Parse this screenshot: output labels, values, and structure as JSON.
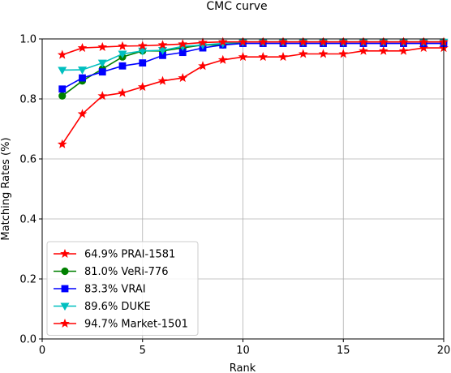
{
  "chart_data": {
    "type": "line",
    "title": "CMC curve",
    "xlabel": "Rank",
    "ylabel": "Matching Rates (%)",
    "xlim": [
      0,
      20
    ],
    "ylim": [
      0.0,
      1.0
    ],
    "xticks": [
      "0",
      "5",
      "10",
      "15",
      "20"
    ],
    "yticks": [
      "0.0",
      "0.2",
      "0.4",
      "0.6",
      "0.8",
      "1.0"
    ],
    "grid": true,
    "legend_position": "lower-left",
    "x": [
      1,
      2,
      3,
      4,
      5,
      6,
      7,
      8,
      9,
      10,
      11,
      12,
      13,
      14,
      15,
      16,
      17,
      18,
      19,
      20
    ],
    "series": [
      {
        "name": "64.9% PRAI-1581",
        "color": "#ff0000",
        "marker": "star",
        "values": [
          0.649,
          0.75,
          0.81,
          0.82,
          0.84,
          0.86,
          0.87,
          0.91,
          0.93,
          0.94,
          0.94,
          0.94,
          0.95,
          0.95,
          0.95,
          0.96,
          0.96,
          0.96,
          0.97,
          0.97
        ]
      },
      {
        "name": "81.0% VeRi-776",
        "color": "#008000",
        "marker": "circle",
        "values": [
          0.81,
          0.86,
          0.9,
          0.94,
          0.96,
          0.96,
          0.97,
          0.98,
          0.98,
          0.99,
          0.99,
          0.99,
          0.99,
          0.99,
          0.99,
          0.99,
          0.99,
          0.99,
          0.99,
          0.99
        ]
      },
      {
        "name": "83.3% VRAI",
        "color": "#0000ff",
        "marker": "square",
        "values": [
          0.833,
          0.87,
          0.89,
          0.91,
          0.92,
          0.945,
          0.955,
          0.97,
          0.98,
          0.985,
          0.985,
          0.985,
          0.985,
          0.985,
          0.985,
          0.985,
          0.985,
          0.985,
          0.985,
          0.985
        ]
      },
      {
        "name": "89.6% DUKE",
        "color": "#00bfbf",
        "marker": "triangle-down",
        "values": [
          0.896,
          0.897,
          0.92,
          0.95,
          0.96,
          0.962,
          0.975,
          0.98,
          0.985,
          0.99,
          0.99,
          0.99,
          0.99,
          0.99,
          0.99,
          0.99,
          0.99,
          0.99,
          0.99,
          0.99
        ]
      },
      {
        "name": "94.7% Market-1501",
        "color": "#ff0000",
        "marker": "star",
        "values": [
          0.947,
          0.97,
          0.973,
          0.976,
          0.977,
          0.98,
          0.983,
          0.988,
          0.99,
          0.99,
          0.99,
          0.99,
          0.99,
          0.99,
          0.99,
          0.99,
          0.99,
          0.99,
          0.99,
          0.99
        ]
      }
    ]
  }
}
